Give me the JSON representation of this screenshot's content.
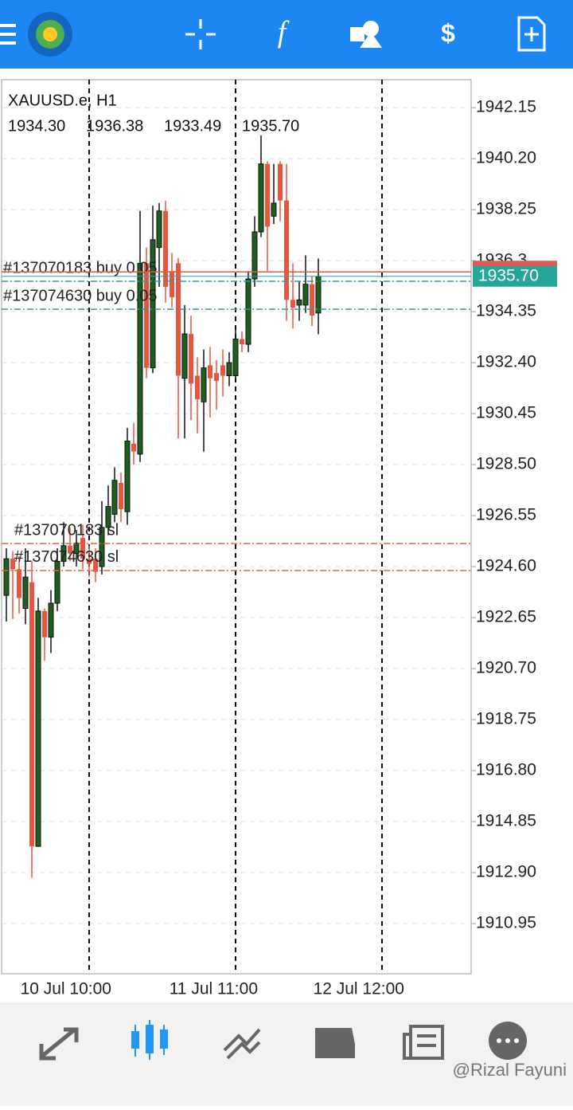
{
  "chart_data": {
    "type": "candlestick",
    "title": "XAUUSD.e, H1",
    "last_bar_labels": [
      "1934.30",
      "1936.38",
      "1933.49",
      "1935.70"
    ],
    "categories": [
      null,
      null,
      null,
      null,
      null,
      null,
      null,
      null,
      null,
      null,
      null,
      null,
      null,
      "10 Jul 10:00",
      null,
      null,
      null,
      null,
      null,
      null,
      null,
      null,
      null,
      null,
      null,
      null,
      null,
      null,
      null,
      null,
      null,
      null,
      null,
      null,
      null,
      null,
      "11 Jul 11:00",
      null,
      null,
      null,
      null,
      null,
      null,
      null,
      null,
      null,
      null,
      null,
      null,
      null,
      null,
      null,
      null,
      null,
      null,
      null,
      null,
      null,
      null,
      "12 Jul 12:00"
    ],
    "open": [
      1923.5,
      1924.9,
      1924.5,
      1923.0,
      1924.0,
      1913.9,
      1922.9,
      1921.9,
      1923.2,
      1924.8,
      1925.4,
      1925.1,
      1925.7,
      1924.9,
      1924.9,
      1924.6,
      1926.1,
      1926.6,
      1927.8,
      1926.7,
      1929.3,
      1928.9,
      1936.2,
      1932.2,
      1936.8,
      1938.2,
      1935.9,
      1936.2,
      1931.8,
      1933.5,
      1931.9,
      1930.9,
      1932.3,
      1932.0,
      1932.3,
      1931.9,
      1931.9,
      1933.3,
      1933.1,
      1935.6,
      1937.4,
      1940.0,
      1938.0,
      1940.0,
      1938.6,
      1934.8,
      1934.6,
      1934.6,
      1935.4,
      1934.3,
      null,
      null,
      null,
      null,
      null,
      null,
      null,
      null,
      null,
      null
    ],
    "high": [
      1925.3,
      1925.2,
      1925.0,
      1925.3,
      1924.8,
      1923.4,
      1923.0,
      1923.7,
      1925.3,
      1926.3,
      1926.1,
      1926.0,
      1926.2,
      1925.4,
      1925.3,
      1927.1,
      1927.7,
      1928.4,
      1928.2,
      1929.9,
      1930.1,
      1938.2,
      1936.8,
      1938.4,
      1938.5,
      1938.6,
      1936.6,
      1936.4,
      1934.6,
      1934.2,
      1932.6,
      1932.9,
      1933.0,
      1932.5,
      1932.9,
      1932.8,
      1933.7,
      1933.6,
      1935.9,
      1938.0,
      1941.1,
      1940.1,
      1940.0,
      1940.1,
      1940.0,
      1936.2,
      1935.5,
      1936.5,
      1935.7,
      1936.38,
      null,
      null,
      null,
      null,
      null,
      null,
      null,
      null,
      null,
      null
    ],
    "low": [
      1922.5,
      1922.6,
      1922.8,
      1922.4,
      1912.7,
      1913.9,
      1921.0,
      1921.3,
      1922.9,
      1924.6,
      1924.8,
      1924.6,
      1924.5,
      1924.2,
      1924.0,
      1924.3,
      1925.8,
      1926.3,
      1926.3,
      1926.2,
      1928.5,
      1928.6,
      1931.8,
      1932.0,
      1935.3,
      1934.7,
      1934.5,
      1929.5,
      1929.5,
      1930.2,
      1929.7,
      1929.0,
      1930.3,
      1930.6,
      1931.1,
      1931.5,
      1931.8,
      1932.8,
      1932.8,
      1935.3,
      1937.2,
      1935.9,
      1937.7,
      1937.8,
      1934.0,
      1933.7,
      1934.0,
      1934.3,
      1933.8,
      1933.49,
      null,
      null,
      null,
      null,
      null,
      null,
      null,
      null,
      null,
      null
    ],
    "close": [
      1924.9,
      1924.5,
      1923.4,
      1924.2,
      1913.9,
      1922.9,
      1921.9,
      1923.2,
      1924.8,
      1925.4,
      1925.1,
      1925.5,
      1924.9,
      1924.7,
      1924.4,
      1926.1,
      1926.9,
      1927.9,
      1926.8,
      1929.4,
      1929.0,
      1936.2,
      1932.2,
      1937.1,
      1938.2,
      1935.3,
      1934.9,
      1931.9,
      1933.5,
      1931.6,
      1931.0,
      1932.2,
      1931.8,
      1931.7,
      1931.9,
      1932.4,
      1933.3,
      1933.1,
      1935.6,
      1937.4,
      1940.0,
      1937.6,
      1938.5,
      1938.6,
      1934.8,
      1934.5,
      1934.8,
      1935.4,
      1934.2,
      1935.7,
      null,
      null,
      null,
      null,
      null,
      null,
      null,
      null,
      null,
      null
    ],
    "up_color": "#1e5e1e",
    "down_color": "#e8553e",
    "ylim": [
      1909.03,
      1943.22
    ],
    "yticks": [
      1942.15,
      {
        "value": 1940.2,
        "label": "1940.20"
      },
      1938.25,
      1936.3,
      1934.35,
      {
        "value": 1932.4,
        "label": "1932.40"
      },
      1930.45,
      {
        "value": 1928.5,
        "label": "1928.50"
      },
      1926.55,
      {
        "value": 1924.6,
        "label": "1924.60"
      },
      1922.65,
      {
        "value": 1920.7,
        "label": "1920.70"
      },
      1918.75,
      {
        "value": 1916.8,
        "label": "1916.80"
      },
      1914.85,
      {
        "value": 1912.9,
        "label": "1912.90"
      },
      1910.95
    ],
    "grid": true,
    "bid": {
      "value": 1935.7,
      "label": "1935.70",
      "color": "#26a69a"
    },
    "ask": {
      "value": 1935.87,
      "color": "#e05a50"
    },
    "orders": [
      {
        "label": "#137070183 buy 0.05",
        "price": 1935.51,
        "color": "#2a9d9d"
      },
      {
        "label": "#137074630 buy 0.05",
        "price": 1934.44,
        "color": "#2a9d9d"
      },
      {
        "label": "#137070183 sl",
        "price": 1925.48,
        "color": "#e2662e"
      },
      {
        "label": "#137074630 sl",
        "price": 1924.45,
        "color": "#e2662e"
      }
    ],
    "watermark": "@Rizal Fayuni"
  }
}
